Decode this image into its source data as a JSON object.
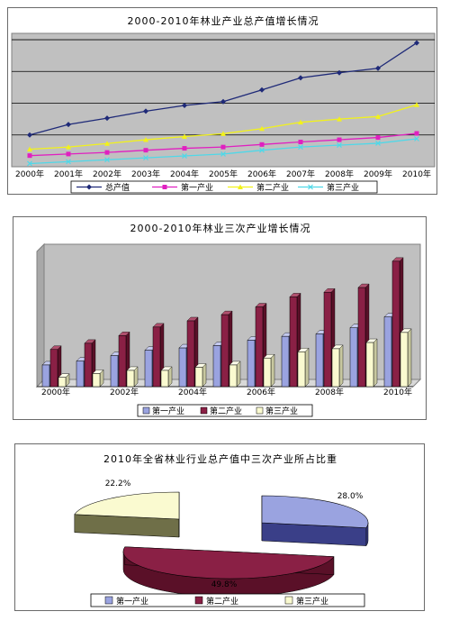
{
  "colors": {
    "total": "#1f2a78",
    "primary": "#e020c0",
    "secondary": "#f2f21a",
    "tertiary": "#4fd8e8",
    "bar_primary": "#9aa3e0",
    "bar_secondary": "#8a2045",
    "bar_tertiary": "#fafad0",
    "plot_bg": "#c0c0c0"
  },
  "chart_data": [
    {
      "type": "line",
      "title": "2000-2010年林业产业总产值增长情况",
      "categories": [
        "2000年",
        "2001年",
        "2002年",
        "2003年",
        "2004年",
        "2005年",
        "2006年",
        "2007年",
        "2008年",
        "2009年",
        "2010年"
      ],
      "series": [
        {
          "name": "总产值",
          "values": [
            100,
            133,
            153,
            175,
            193,
            205,
            242,
            280,
            296,
            310,
            390
          ]
        },
        {
          "name": "第一产业",
          "values": [
            35,
            40,
            45,
            52,
            58,
            62,
            70,
            78,
            85,
            92,
            105
          ]
        },
        {
          "name": "第二产业",
          "values": [
            55,
            62,
            73,
            85,
            95,
            104,
            120,
            140,
            150,
            158,
            195
          ]
        },
        {
          "name": "第三产业",
          "values": [
            10,
            16,
            22,
            28,
            34,
            40,
            52,
            62,
            68,
            74,
            88
          ]
        }
      ],
      "ylim": [
        0,
        420
      ],
      "grid": true,
      "legend": "bottom"
    },
    {
      "type": "bar",
      "title": "2000-2010年林业三次产业增长情况",
      "categories": [
        "2000年",
        "2001年",
        "2002年",
        "2003年",
        "2004年",
        "2005年",
        "2006年",
        "2007年",
        "2008年",
        "2009年",
        "2010年"
      ],
      "tick_labels": [
        "2000年",
        "",
        "2002年",
        "",
        "2004年",
        "",
        "2006年",
        "",
        "2008年",
        "",
        "2010年"
      ],
      "series": [
        {
          "name": "第一产业",
          "values": [
            28,
            33,
            40,
            47,
            50,
            53,
            60,
            65,
            68,
            76,
            90
          ]
        },
        {
          "name": "第二产业",
          "values": [
            48,
            56,
            66,
            77,
            85,
            93,
            103,
            116,
            122,
            128,
            162
          ]
        },
        {
          "name": "第三产业",
          "values": [
            12,
            17,
            21,
            21,
            25,
            28,
            37,
            45,
            49,
            57,
            70
          ]
        }
      ],
      "ylim": [
        0,
        170
      ],
      "legend": "bottom"
    },
    {
      "type": "pie",
      "title": "2010年全省林业行业总产值中三次产业所占比重",
      "labels": [
        "第一产业",
        "第二产业",
        "第三产业"
      ],
      "values": [
        28.0,
        49.8,
        22.2
      ],
      "value_labels": [
        "28.0%",
        "49.8%",
        "22.2%"
      ],
      "legend": "bottom"
    }
  ]
}
